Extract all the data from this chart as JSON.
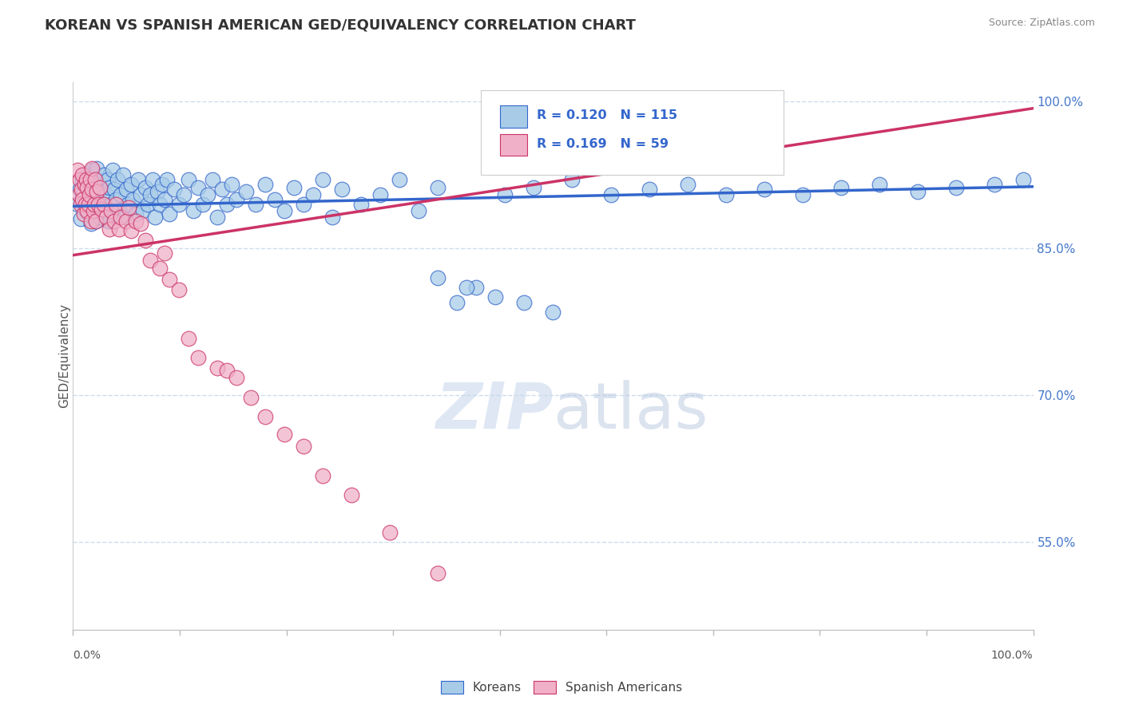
{
  "title": "KOREAN VS SPANISH AMERICAN GED/EQUIVALENCY CORRELATION CHART",
  "source": "Source: ZipAtlas.com",
  "ylabel": "GED/Equivalency",
  "right_yticks": [
    0.55,
    0.7,
    0.85,
    1.0
  ],
  "right_yticklabels": [
    "55.0%",
    "70.0%",
    "85.0%",
    "100.0%"
  ],
  "legend_entries": [
    {
      "label": "Koreans",
      "R": 0.12,
      "N": 115
    },
    {
      "label": "Spanish Americans",
      "R": 0.169,
      "N": 59
    }
  ],
  "blue_scatter_x": [
    0.005,
    0.007,
    0.008,
    0.01,
    0.01,
    0.012,
    0.013,
    0.015,
    0.015,
    0.016,
    0.017,
    0.018,
    0.018,
    0.019,
    0.02,
    0.02,
    0.021,
    0.022,
    0.022,
    0.023,
    0.024,
    0.025,
    0.025,
    0.026,
    0.027,
    0.028,
    0.03,
    0.031,
    0.032,
    0.033,
    0.035,
    0.036,
    0.037,
    0.038,
    0.04,
    0.041,
    0.042,
    0.043,
    0.045,
    0.046,
    0.048,
    0.05,
    0.052,
    0.054,
    0.055,
    0.057,
    0.06,
    0.062,
    0.065,
    0.068,
    0.07,
    0.073,
    0.075,
    0.078,
    0.08,
    0.083,
    0.085,
    0.088,
    0.09,
    0.093,
    0.095,
    0.098,
    0.1,
    0.105,
    0.11,
    0.115,
    0.12,
    0.125,
    0.13,
    0.135,
    0.14,
    0.145,
    0.15,
    0.155,
    0.16,
    0.165,
    0.17,
    0.18,
    0.19,
    0.2,
    0.21,
    0.22,
    0.23,
    0.24,
    0.25,
    0.26,
    0.27,
    0.28,
    0.3,
    0.32,
    0.34,
    0.36,
    0.38,
    0.4,
    0.42,
    0.45,
    0.48,
    0.52,
    0.56,
    0.6,
    0.64,
    0.68,
    0.72,
    0.76,
    0.8,
    0.84,
    0.88,
    0.92,
    0.96,
    0.99,
    0.38,
    0.41,
    0.44,
    0.47,
    0.5
  ],
  "blue_scatter_y": [
    0.895,
    0.91,
    0.88,
    0.905,
    0.92,
    0.89,
    0.915,
    0.9,
    0.925,
    0.885,
    0.91,
    0.895,
    0.92,
    0.875,
    0.905,
    0.93,
    0.888,
    0.912,
    0.895,
    0.92,
    0.878,
    0.908,
    0.932,
    0.89,
    0.915,
    0.882,
    0.91,
    0.895,
    0.925,
    0.888,
    0.905,
    0.92,
    0.878,
    0.912,
    0.895,
    0.93,
    0.885,
    0.91,
    0.9,
    0.92,
    0.888,
    0.905,
    0.925,
    0.882,
    0.91,
    0.895,
    0.915,
    0.9,
    0.885,
    0.92,
    0.905,
    0.888,
    0.912,
    0.895,
    0.905,
    0.92,
    0.882,
    0.908,
    0.895,
    0.915,
    0.9,
    0.92,
    0.885,
    0.91,
    0.895,
    0.905,
    0.92,
    0.888,
    0.912,
    0.895,
    0.905,
    0.92,
    0.882,
    0.91,
    0.895,
    0.915,
    0.9,
    0.908,
    0.895,
    0.915,
    0.9,
    0.888,
    0.912,
    0.895,
    0.905,
    0.92,
    0.882,
    0.91,
    0.895,
    0.905,
    0.92,
    0.888,
    0.912,
    0.795,
    0.81,
    0.905,
    0.912,
    0.92,
    0.905,
    0.91,
    0.915,
    0.905,
    0.91,
    0.905,
    0.912,
    0.915,
    0.908,
    0.912,
    0.915,
    0.92,
    0.82,
    0.81,
    0.8,
    0.795,
    0.785
  ],
  "pink_scatter_x": [
    0.005,
    0.006,
    0.007,
    0.008,
    0.009,
    0.01,
    0.01,
    0.011,
    0.012,
    0.013,
    0.014,
    0.015,
    0.015,
    0.016,
    0.017,
    0.018,
    0.019,
    0.02,
    0.02,
    0.021,
    0.022,
    0.023,
    0.024,
    0.025,
    0.026,
    0.028,
    0.03,
    0.032,
    0.035,
    0.038,
    0.04,
    0.043,
    0.045,
    0.048,
    0.05,
    0.055,
    0.058,
    0.06,
    0.065,
    0.07,
    0.075,
    0.08,
    0.09,
    0.095,
    0.1,
    0.11,
    0.12,
    0.13,
    0.15,
    0.16,
    0.17,
    0.185,
    0.2,
    0.22,
    0.24,
    0.26,
    0.29,
    0.33,
    0.38
  ],
  "pink_scatter_y": [
    0.93,
    0.905,
    0.92,
    0.895,
    0.91,
    0.9,
    0.925,
    0.885,
    0.915,
    0.895,
    0.92,
    0.888,
    0.912,
    0.895,
    0.905,
    0.92,
    0.878,
    0.91,
    0.932,
    0.888,
    0.895,
    0.92,
    0.878,
    0.908,
    0.895,
    0.912,
    0.89,
    0.895,
    0.882,
    0.87,
    0.888,
    0.878,
    0.895,
    0.87,
    0.882,
    0.878,
    0.892,
    0.868,
    0.878,
    0.875,
    0.858,
    0.838,
    0.83,
    0.845,
    0.818,
    0.808,
    0.758,
    0.738,
    0.728,
    0.725,
    0.718,
    0.698,
    0.678,
    0.66,
    0.648,
    0.618,
    0.598,
    0.56,
    0.518
  ],
  "blue_line_x": [
    0.0,
    1.0
  ],
  "blue_line_y": [
    0.893,
    0.913
  ],
  "pink_line_x": [
    0.0,
    1.0
  ],
  "pink_line_y": [
    0.843,
    0.993
  ],
  "scatter_color_blue": "#a8cce8",
  "scatter_color_pink": "#f0b0c8",
  "line_color_blue": "#3366cc",
  "line_color_pink": "#cc3366",
  "legend_box_blue": "#a8cce8",
  "legend_box_pink": "#f0b0c8",
  "legend_text_color": "#3366cc",
  "right_axis_label_color": "#4477cc",
  "title_color": "#333333",
  "source_color": "#888888",
  "watermark_color": "#c8d8ec",
  "background_color": "#ffffff",
  "grid_color": "#ccddee",
  "xmin": 0.0,
  "xmax": 1.0,
  "ymin": 0.46,
  "ymax": 1.02
}
